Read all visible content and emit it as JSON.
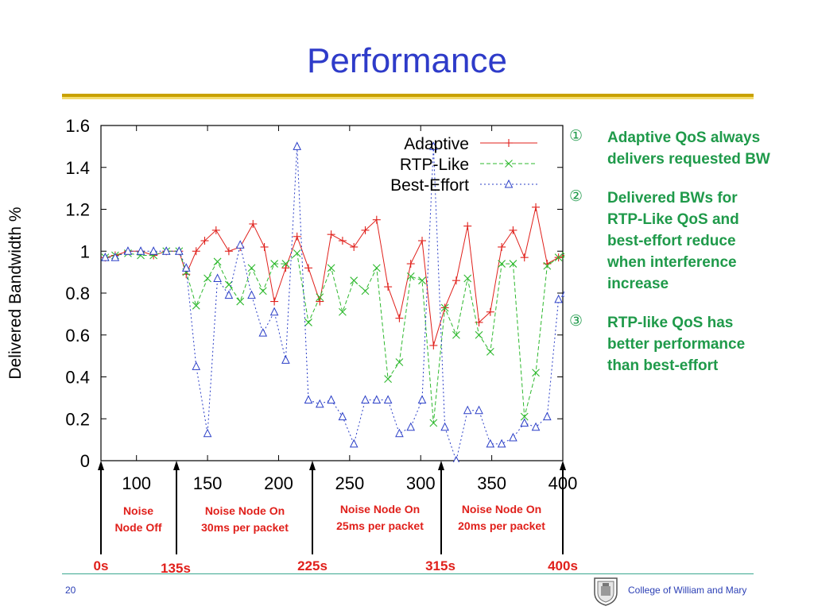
{
  "slide": {
    "title": "Performance",
    "page_number": "20",
    "footer_text": "College of William and Mary"
  },
  "bullets": [
    {
      "marker": "①",
      "text": "Adaptive QoS always\ndelivers requested BW"
    },
    {
      "marker": "②",
      "text": "Delivered BWs for\nRTP-Like QoS  and\nbest-effort reduce\nwhen interference\nincrease"
    },
    {
      "marker": "③",
      "text": "RTP-like QoS has\nbetter performance\nthan best-effort"
    }
  ],
  "chart_data": {
    "type": "line",
    "xlabel": "",
    "ylabel": "Delivered Bandwidth %",
    "xlim": [
      75,
      400
    ],
    "ylim": [
      0,
      1.6
    ],
    "xticks": [
      "100",
      "150",
      "200",
      "250",
      "300",
      "350",
      "400"
    ],
    "yticks": [
      "0",
      "0.2",
      "0.4",
      "0.6",
      "0.8",
      "1",
      "1.2",
      "1.4",
      "1.6"
    ],
    "grid": false,
    "legend_position": "top-right",
    "series": [
      {
        "name": "Adaptive",
        "color": "#e0201b",
        "marker": "plus",
        "dash": "solid",
        "x": [
          78,
          85,
          94,
          103,
          112,
          121,
          130,
          135,
          142,
          148,
          156,
          165,
          173,
          182,
          190,
          197,
          205,
          213,
          221,
          229,
          237,
          245,
          253,
          261,
          269,
          277,
          285,
          293,
          301,
          309,
          317,
          325,
          333,
          341,
          349,
          357,
          365,
          373,
          381,
          389,
          397,
          402
        ],
        "y": [
          0.97,
          0.98,
          1.0,
          1.0,
          0.98,
          1.0,
          1.0,
          0.89,
          1.0,
          1.05,
          1.1,
          1.0,
          1.02,
          1.13,
          1.02,
          0.76,
          0.92,
          1.07,
          0.92,
          0.76,
          1.08,
          1.05,
          1.02,
          1.1,
          1.15,
          0.83,
          0.68,
          0.94,
          1.05,
          0.55,
          0.73,
          0.86,
          1.12,
          0.66,
          0.71,
          1.02,
          1.1,
          0.97,
          1.21,
          0.94,
          0.97,
          0.98
        ]
      },
      {
        "name": "RTP-Like",
        "color": "#2db82d",
        "marker": "cross",
        "dash": "dashed",
        "x": [
          78,
          85,
          94,
          103,
          112,
          121,
          130,
          135,
          142,
          150,
          157,
          165,
          173,
          181,
          189,
          197,
          205,
          213,
          221,
          229,
          237,
          245,
          253,
          261,
          269,
          277,
          285,
          293,
          301,
          309,
          317,
          325,
          333,
          341,
          349,
          357,
          365,
          373,
          381,
          389,
          397,
          402
        ],
        "y": [
          0.97,
          0.98,
          0.99,
          0.98,
          0.98,
          1.0,
          1.0,
          0.9,
          0.74,
          0.87,
          0.95,
          0.84,
          0.76,
          0.92,
          0.81,
          0.94,
          0.94,
          0.99,
          0.66,
          0.78,
          0.92,
          0.71,
          0.86,
          0.81,
          0.92,
          0.39,
          0.47,
          0.88,
          0.86,
          0.18,
          0.73,
          0.6,
          0.87,
          0.6,
          0.52,
          0.94,
          0.94,
          0.21,
          0.42,
          0.93,
          0.97,
          0.98
        ]
      },
      {
        "name": "Best-Effort",
        "color": "#2b3fc7",
        "marker": "triangle",
        "dash": "dotted",
        "x": [
          78,
          85,
          94,
          103,
          112,
          121,
          130,
          135,
          142,
          150,
          157,
          165,
          173,
          181,
          189,
          197,
          205,
          213,
          221,
          229,
          237,
          245,
          253,
          261,
          269,
          277,
          285,
          293,
          301,
          309,
          317,
          325,
          333,
          341,
          349,
          357,
          365,
          373,
          381,
          389,
          397,
          402
        ],
        "y": [
          0.97,
          0.97,
          1.0,
          1.0,
          1.0,
          1.0,
          1.0,
          0.92,
          0.45,
          0.13,
          0.87,
          0.79,
          1.03,
          0.79,
          0.61,
          0.71,
          0.48,
          1.5,
          0.29,
          0.27,
          0.29,
          0.21,
          0.08,
          0.29,
          0.29,
          0.29,
          0.13,
          0.16,
          0.29,
          1.5,
          0.16,
          0.0,
          0.24,
          0.24,
          0.08,
          0.08,
          0.11,
          0.18,
          0.16,
          0.21,
          0.77,
          0.8
        ]
      }
    ],
    "annotations": {
      "time_markers": [
        {
          "label": "0s",
          "x": 75
        },
        {
          "label": "135s",
          "x": 127
        },
        {
          "label": "225s",
          "x": 228
        },
        {
          "label": "315s",
          "x": 310
        },
        {
          "label": "400s",
          "x": 400
        }
      ],
      "phases": [
        {
          "label": "Noise\nNode Off"
        },
        {
          "label": "Noise Node On\n30ms per packet"
        },
        {
          "label": "Noise Node On\n25ms per packet"
        },
        {
          "label": "Noise Node On\n20ms per packet"
        }
      ],
      "marker_color": "#e0201b",
      "phase_color": "#e0201b"
    }
  }
}
